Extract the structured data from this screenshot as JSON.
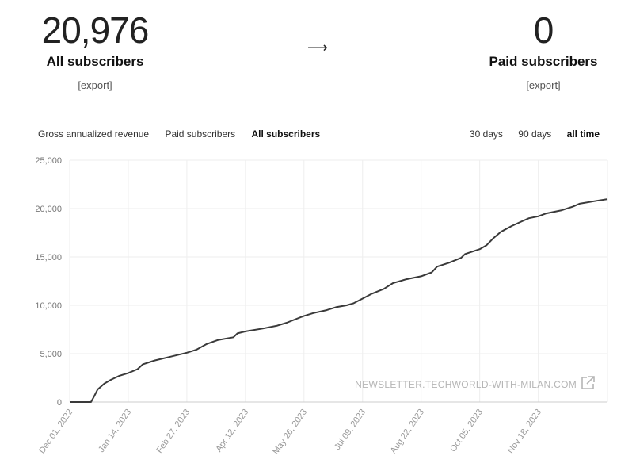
{
  "stats": {
    "all": {
      "value": "20,976",
      "label": "All subscribers",
      "export": "[export]"
    },
    "arrow": "⟶",
    "paid": {
      "value": "0",
      "label": "Paid subscribers",
      "export": "[export]"
    }
  },
  "metric_tabs": [
    {
      "label": "Gross annualized revenue",
      "active": false
    },
    {
      "label": "Paid subscribers",
      "active": false
    },
    {
      "label": "All subscribers",
      "active": true
    }
  ],
  "range_tabs": [
    {
      "label": "30 days",
      "active": false
    },
    {
      "label": "90 days",
      "active": false
    },
    {
      "label": "all time",
      "active": true
    }
  ],
  "watermark": "NEWSLETTER.TECHWORLD-WITH-MILAN.COM",
  "watermark_icon": "external-link-icon",
  "colors": {
    "line": "#3a3a3a",
    "grid": "#eeeeee"
  },
  "chart_data": {
    "type": "line",
    "title": "",
    "xlabel": "",
    "ylabel": "",
    "x_ticks": [
      "Dec 01, 2022",
      "Jan 14, 2023",
      "Feb 27, 2023",
      "Apr 12, 2023",
      "May 26, 2023",
      "Jul 09, 2023",
      "Aug 22, 2023",
      "Oct 05, 2023",
      "Nov 18, 2023"
    ],
    "y_ticks": [
      0,
      5000,
      10000,
      15000,
      20000,
      25000
    ],
    "y_tick_labels": [
      "0",
      "5,000",
      "10,000",
      "15,000",
      "20,000",
      "25,000"
    ],
    "ylim": [
      0,
      25000
    ],
    "xlim": [
      "2022-12-01",
      "2024-01-09"
    ],
    "grid": true,
    "series": [
      {
        "points": [
          [
            "2022-12-01",
            0
          ],
          [
            "2022-12-17",
            0
          ],
          [
            "2022-12-19",
            500
          ],
          [
            "2022-12-22",
            1300
          ],
          [
            "2022-12-27",
            1900
          ],
          [
            "2023-01-01",
            2300
          ],
          [
            "2023-01-07",
            2700
          ],
          [
            "2023-01-14",
            3000
          ],
          [
            "2023-01-21",
            3400
          ],
          [
            "2023-01-25",
            3900
          ],
          [
            "2023-02-03",
            4300
          ],
          [
            "2023-02-15",
            4700
          ],
          [
            "2023-02-27",
            5100
          ],
          [
            "2023-03-06",
            5400
          ],
          [
            "2023-03-14",
            6000
          ],
          [
            "2023-03-22",
            6400
          ],
          [
            "2023-04-03",
            6700
          ],
          [
            "2023-04-06",
            7100
          ],
          [
            "2023-04-12",
            7300
          ],
          [
            "2023-04-25",
            7600
          ],
          [
            "2023-05-06",
            7900
          ],
          [
            "2023-05-13",
            8200
          ],
          [
            "2023-05-26",
            8900
          ],
          [
            "2023-06-02",
            9200
          ],
          [
            "2023-06-12",
            9500
          ],
          [
            "2023-06-19",
            9800
          ],
          [
            "2023-06-27",
            10000
          ],
          [
            "2023-07-02",
            10200
          ],
          [
            "2023-07-09",
            10700
          ],
          [
            "2023-07-16",
            11200
          ],
          [
            "2023-07-25",
            11700
          ],
          [
            "2023-08-01",
            12300
          ],
          [
            "2023-08-11",
            12700
          ],
          [
            "2023-08-22",
            13000
          ],
          [
            "2023-08-30",
            13400
          ],
          [
            "2023-09-03",
            14000
          ],
          [
            "2023-09-12",
            14400
          ],
          [
            "2023-09-21",
            14900
          ],
          [
            "2023-09-24",
            15300
          ],
          [
            "2023-10-05",
            15800
          ],
          [
            "2023-10-10",
            16200
          ],
          [
            "2023-10-15",
            16900
          ],
          [
            "2023-10-21",
            17600
          ],
          [
            "2023-10-29",
            18200
          ],
          [
            "2023-11-06",
            18700
          ],
          [
            "2023-11-11",
            19000
          ],
          [
            "2023-11-18",
            19200
          ],
          [
            "2023-11-24",
            19500
          ],
          [
            "2023-12-05",
            19800
          ],
          [
            "2023-12-14",
            20200
          ],
          [
            "2023-12-19",
            20500
          ],
          [
            "2024-01-01",
            20800
          ],
          [
            "2024-01-09",
            20976
          ]
        ]
      }
    ]
  }
}
